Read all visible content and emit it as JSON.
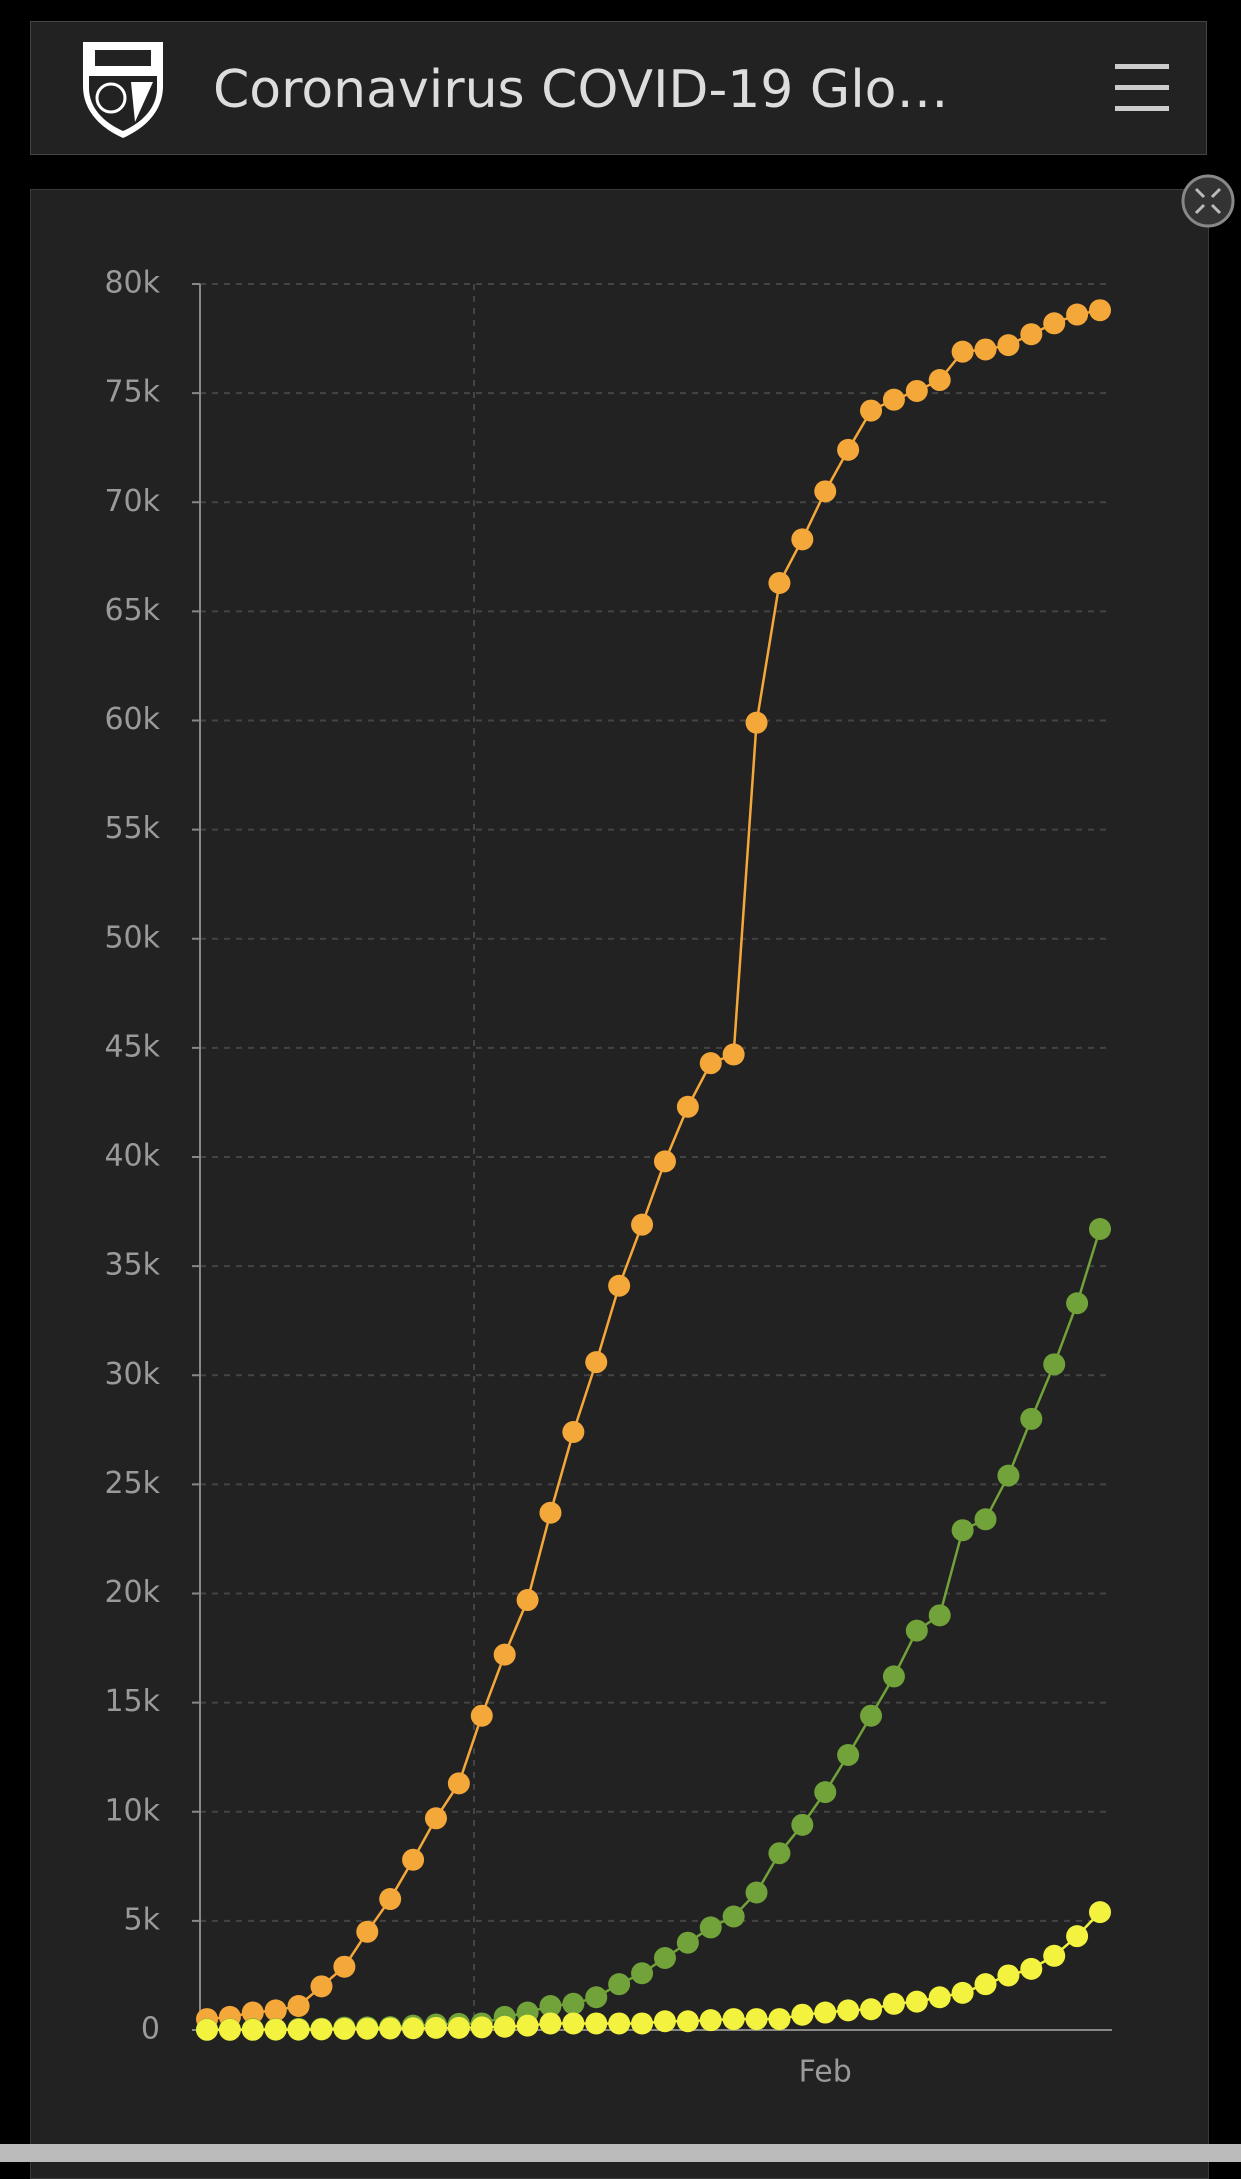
{
  "header": {
    "title": "Coronavirus COVID-19 Glo…"
  },
  "chart_data": {
    "type": "line",
    "categories": [
      null,
      null,
      null,
      null,
      null,
      null,
      null,
      null,
      null,
      null,
      null,
      null,
      null,
      null,
      null,
      null,
      null,
      null,
      null,
      null,
      null,
      null,
      null,
      null,
      null,
      null,
      null,
      "Feb",
      null,
      null,
      null,
      null,
      null,
      null,
      null,
      null,
      null,
      null,
      null,
      null
    ],
    "series": [
      {
        "color": "#f5a83a",
        "values": [
          500,
          600,
          800,
          900,
          1100,
          2000,
          2900,
          4500,
          6000,
          7800,
          9700,
          11300,
          14400,
          17200,
          19700,
          23700,
          27400,
          30600,
          34100,
          36900,
          39800,
          42300,
          44300,
          44700,
          59900,
          66300,
          68300,
          70500,
          72400,
          74200,
          74700,
          75100,
          75600,
          76900,
          77000,
          77200,
          77700,
          78200,
          78600,
          78800
        ]
      },
      {
        "color": "#72a23a",
        "values": [
          30,
          30,
          40,
          40,
          50,
          60,
          110,
          120,
          130,
          200,
          250,
          280,
          300,
          600,
          800,
          1100,
          1200,
          1500,
          2100,
          2600,
          3300,
          4000,
          4700,
          5200,
          6300,
          8100,
          9400,
          10900,
          12600,
          14400,
          16200,
          18300,
          19000,
          22900,
          23400,
          25400,
          28000,
          30500,
          33300,
          36700
        ]
      },
      {
        "color": "#f3f33f",
        "values": [
          10,
          10,
          10,
          20,
          20,
          30,
          50,
          60,
          70,
          80,
          100,
          100,
          120,
          150,
          200,
          300,
          300,
          300,
          300,
          300,
          400,
          400,
          450,
          500,
          500,
          500,
          700,
          800,
          900,
          950,
          1200,
          1300,
          1500,
          1700,
          2100,
          2500,
          2800,
          3400,
          4300,
          5400
        ]
      }
    ],
    "ylim": [
      0,
      80000
    ],
    "yticks": [
      {
        "value": 0,
        "label": "0"
      },
      {
        "value": 5000,
        "label": "5k"
      },
      {
        "value": 10000,
        "label": "10k"
      },
      {
        "value": 15000,
        "label": "15k"
      },
      {
        "value": 20000,
        "label": "20k"
      },
      {
        "value": 25000,
        "label": "25k"
      },
      {
        "value": 30000,
        "label": "30k"
      },
      {
        "value": 35000,
        "label": "35k"
      },
      {
        "value": 40000,
        "label": "40k"
      },
      {
        "value": 45000,
        "label": "45k"
      },
      {
        "value": 50000,
        "label": "50k"
      },
      {
        "value": 55000,
        "label": "55k"
      },
      {
        "value": 60000,
        "label": "60k"
      },
      {
        "value": 65000,
        "label": "65k"
      },
      {
        "value": 70000,
        "label": "70k"
      },
      {
        "value": 75000,
        "label": "75k"
      },
      {
        "value": 80000,
        "label": "80k"
      }
    ],
    "grid": true
  }
}
